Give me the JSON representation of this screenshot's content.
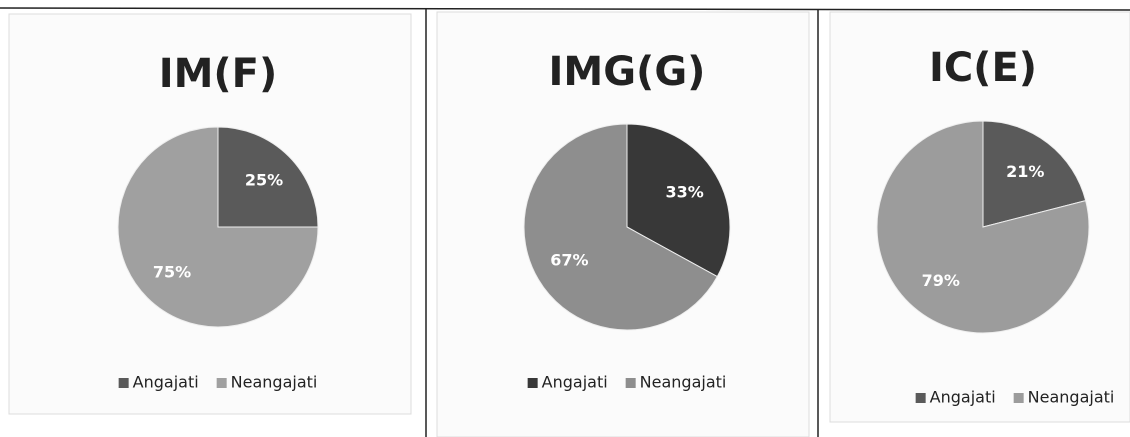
{
  "chart_data": [
    {
      "type": "pie",
      "title": "IM(F)",
      "categories": [
        "Angajati",
        "Neangajati"
      ],
      "values": [
        25,
        75
      ],
      "value_labels": [
        "25%",
        "75%"
      ],
      "colors": [
        "#5a5a5a",
        "#a0a0a0"
      ]
    },
    {
      "type": "pie",
      "title": "IMG(G)",
      "categories": [
        "Angajati",
        "Neangajati"
      ],
      "values": [
        33,
        67
      ],
      "value_labels": [
        "33%",
        "67%"
      ],
      "colors": [
        "#383838",
        "#8e8e8e"
      ]
    },
    {
      "type": "pie",
      "title": "IC(E)",
      "categories": [
        "Angajati",
        "Neangajati"
      ],
      "values": [
        21,
        79
      ],
      "value_labels": [
        "21%",
        "79%"
      ],
      "colors": [
        "#5a5a5a",
        "#9c9c9c"
      ]
    }
  ]
}
